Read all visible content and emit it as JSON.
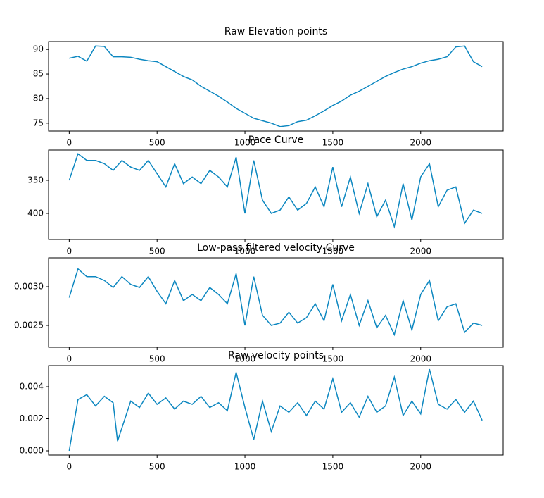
{
  "chart_data": [
    {
      "type": "line",
      "title": "Raw Elevation points",
      "color": "#0c87c0",
      "x": [
        0,
        50,
        100,
        150,
        200,
        250,
        300,
        350,
        400,
        450,
        500,
        550,
        600,
        650,
        700,
        750,
        800,
        850,
        900,
        950,
        1000,
        1050,
        1100,
        1150,
        1200,
        1250,
        1300,
        1350,
        1400,
        1450,
        1500,
        1550,
        1600,
        1650,
        1700,
        1750,
        1800,
        1850,
        1900,
        1950,
        2000,
        2050,
        2100,
        2150,
        2200,
        2250,
        2300,
        2350
      ],
      "values": [
        88.2,
        88.6,
        87.6,
        90.7,
        90.6,
        88.5,
        88.5,
        88.4,
        88,
        87.7,
        87.5,
        86.5,
        85.5,
        84.5,
        83.8,
        82.5,
        81.5,
        80.5,
        79.3,
        78,
        77,
        76,
        75.5,
        75,
        74.3,
        74.5,
        75.3,
        75.6,
        76.5,
        77.5,
        78.6,
        79.5,
        80.7,
        81.5,
        82.5,
        83.5,
        84.5,
        85.3,
        86,
        86.5,
        87.2,
        87.7,
        88,
        88.5,
        90.5,
        90.7,
        87.5,
        86.5
      ],
      "xlim": [
        -117.6,
        2469.6
      ],
      "xticks": [
        0,
        500,
        1000,
        1500,
        2000
      ],
      "ylim": [
        73.4,
        91.6
      ],
      "yticks": [
        75,
        80,
        85,
        90
      ]
    },
    {
      "type": "line",
      "title": "Pace  Curve",
      "color": "#0c87c0",
      "x": [
        0,
        50,
        100,
        150,
        200,
        250,
        300,
        350,
        400,
        450,
        500,
        550,
        600,
        650,
        700,
        750,
        800,
        850,
        900,
        950,
        1000,
        1050,
        1100,
        1150,
        1200,
        1250,
        1300,
        1350,
        1400,
        1450,
        1500,
        1550,
        1600,
        1650,
        1700,
        1750,
        1800,
        1850,
        1900,
        1950,
        2000,
        2050,
        2100,
        2150,
        2200,
        2250,
        2300,
        2350
      ],
      "values": [
        350,
        310,
        320,
        320,
        325,
        335,
        320,
        330,
        335,
        320,
        340,
        360,
        325,
        355,
        345,
        355,
        335,
        345,
        360,
        315,
        400,
        320,
        380,
        400,
        395,
        375,
        395,
        385,
        360,
        390,
        330,
        390,
        345,
        400,
        355,
        405,
        380,
        420,
        355,
        410,
        345,
        325,
        390,
        365,
        360,
        415,
        395,
        400
      ],
      "xlim": [
        -117.6,
        2469.6
      ],
      "xticks": [
        0,
        500,
        1000,
        1500,
        2000
      ],
      "ylim": [
        439.4,
        304.3
      ],
      "yticks": [
        350,
        400
      ]
    },
    {
      "type": "line",
      "title": "Low-pass filtered velocity Curve",
      "color": "#0c87c0",
      "x": [
        0,
        50,
        100,
        150,
        200,
        250,
        300,
        350,
        400,
        450,
        500,
        550,
        600,
        650,
        700,
        750,
        800,
        850,
        900,
        950,
        1000,
        1050,
        1100,
        1150,
        1200,
        1250,
        1300,
        1350,
        1400,
        1450,
        1500,
        1550,
        1600,
        1650,
        1700,
        1750,
        1800,
        1850,
        1900,
        1950,
        2000,
        2050,
        2100,
        2150,
        2200,
        2250,
        2300,
        2350
      ],
      "values": [
        0.00286,
        0.00323,
        0.00313,
        0.00313,
        0.00308,
        0.00299,
        0.00313,
        0.00303,
        0.00299,
        0.00313,
        0.00294,
        0.00278,
        0.00308,
        0.00282,
        0.0029,
        0.00282,
        0.00299,
        0.0029,
        0.00278,
        0.00317,
        0.0025,
        0.00313,
        0.00263,
        0.0025,
        0.00253,
        0.00267,
        0.00253,
        0.0026,
        0.00278,
        0.00256,
        0.00303,
        0.00256,
        0.0029,
        0.0025,
        0.00282,
        0.00247,
        0.00263,
        0.00238,
        0.00282,
        0.00244,
        0.0029,
        0.00308,
        0.00256,
        0.00274,
        0.00278,
        0.00241,
        0.00253,
        0.0025
      ],
      "xlim": [
        -117.6,
        2469.6
      ],
      "xticks": [
        0,
        500,
        1000,
        1500,
        2000
      ],
      "ylim": [
        0.002218,
        0.003373
      ],
      "yticks": [
        {
          "value": 0.0025,
          "label": "0.0025"
        },
        {
          "value": 0.003,
          "label": "0.0030"
        }
      ]
    },
    {
      "type": "line",
      "title": "Raw velocity points",
      "color": "#0c87c0",
      "x": [
        0,
        50,
        100,
        150,
        200,
        250,
        275,
        350,
        400,
        450,
        500,
        550,
        600,
        650,
        700,
        750,
        800,
        850,
        900,
        950,
        1000,
        1050,
        1100,
        1150,
        1200,
        1250,
        1300,
        1350,
        1400,
        1450,
        1500,
        1550,
        1600,
        1650,
        1700,
        1750,
        1800,
        1850,
        1900,
        1950,
        2000,
        2050,
        2100,
        2150,
        2200,
        2250,
        2300,
        2350
      ],
      "values": [
        0,
        0.0032,
        0.0035,
        0.0028,
        0.0034,
        0.003,
        0.0006,
        0.0031,
        0.0027,
        0.0036,
        0.0029,
        0.0033,
        0.0026,
        0.0031,
        0.0029,
        0.0034,
        0.0027,
        0.003,
        0.0025,
        0.0049,
        0.0027,
        0.0007,
        0.0031,
        0.0012,
        0.0028,
        0.0024,
        0.003,
        0.0022,
        0.0031,
        0.0026,
        0.0045,
        0.0024,
        0.003,
        0.0021,
        0.0034,
        0.0024,
        0.0028,
        0.0046,
        0.0022,
        0.0031,
        0.0023,
        0.0051,
        0.0029,
        0.0026,
        0.0032,
        0.0024,
        0.0031,
        0.0019
      ],
      "xlim": [
        -117.6,
        2469.6
      ],
      "xticks": [
        0,
        500,
        1000,
        1500,
        2000
      ],
      "ylim": [
        -0.000264,
        0.00532
      ],
      "yticks": [
        {
          "value": 0,
          "label": "0.000"
        },
        {
          "value": 0.002,
          "label": "0.002"
        },
        {
          "value": 0.004,
          "label": "0.004"
        }
      ]
    }
  ]
}
